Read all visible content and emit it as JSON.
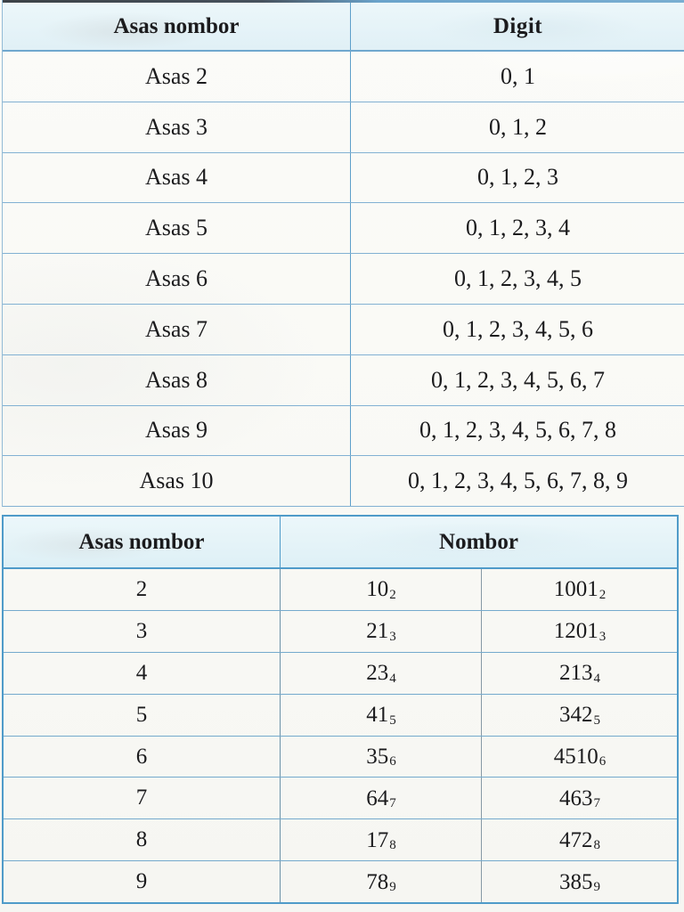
{
  "colors": {
    "line_blue": "#74aacd",
    "outer_blue": "#4f9bc9",
    "header_tint": "#e4f2f8",
    "ink": "#1b1b1d"
  },
  "table1": {
    "headers": {
      "col1": "Asas nombor",
      "col2": "Digit"
    },
    "rows": [
      {
        "label": "Asas 2",
        "digits": "0, 1"
      },
      {
        "label": "Asas 3",
        "digits": "0, 1, 2"
      },
      {
        "label": "Asas 4",
        "digits": "0, 1, 2, 3"
      },
      {
        "label": "Asas 5",
        "digits": "0, 1, 2, 3, 4"
      },
      {
        "label": "Asas 6",
        "digits": "0, 1, 2, 3, 4, 5"
      },
      {
        "label": "Asas 7",
        "digits": "0, 1, 2, 3, 4, 5, 6"
      },
      {
        "label": "Asas 8",
        "digits": "0, 1, 2, 3, 4, 5, 6, 7"
      },
      {
        "label": "Asas 9",
        "digits": "0, 1, 2, 3, 4, 5, 6, 7, 8"
      },
      {
        "label": "Asas 10",
        "digits": "0, 1, 2, 3, 4, 5, 6, 7, 8, 9"
      }
    ]
  },
  "table2": {
    "headers": {
      "col1": "Asas nombor",
      "col2": "Nombor"
    },
    "rows": [
      {
        "base": "2",
        "num1": "10",
        "num1_sub": "2",
        "num2": "1001",
        "num2_sub": "2"
      },
      {
        "base": "3",
        "num1": "21",
        "num1_sub": "3",
        "num2": "1201",
        "num2_sub": "3"
      },
      {
        "base": "4",
        "num1": "23",
        "num1_sub": "4",
        "num2": "213",
        "num2_sub": "4"
      },
      {
        "base": "5",
        "num1": "41",
        "num1_sub": "5",
        "num2": "342",
        "num2_sub": "5"
      },
      {
        "base": "6",
        "num1": "35",
        "num1_sub": "6",
        "num2": "4510",
        "num2_sub": "6"
      },
      {
        "base": "7",
        "num1": "64",
        "num1_sub": "7",
        "num2": "463",
        "num2_sub": "7"
      },
      {
        "base": "8",
        "num1": "17",
        "num1_sub": "8",
        "num2": "472",
        "num2_sub": "8"
      },
      {
        "base": "9",
        "num1": "78",
        "num1_sub": "9",
        "num2": "385",
        "num2_sub": "9"
      }
    ]
  }
}
